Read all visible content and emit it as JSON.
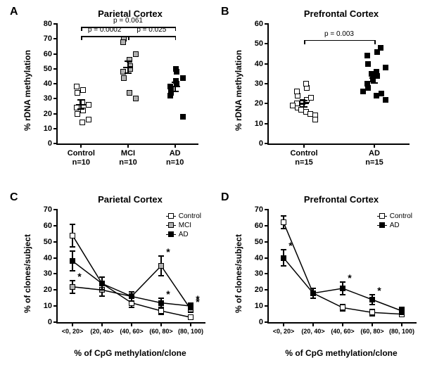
{
  "colors": {
    "bg": "#ffffff",
    "axis": "#000000",
    "open_fill": "#ffffff",
    "gray_fill": "#b0b0b0",
    "black_fill": "#000000",
    "line": "#000000"
  },
  "panelA": {
    "label": "A",
    "title": "Parietal Cortex",
    "type": "scatter",
    "ylabel": "% rDNA methylation",
    "ylim": [
      0,
      80
    ],
    "ytick_step": 10,
    "groups": [
      {
        "name": "Control",
        "n": 10,
        "marker": "open",
        "points": [
          20,
          24,
          22,
          28,
          16,
          34,
          38,
          36,
          14,
          26
        ],
        "mean": 26,
        "sem": 3
      },
      {
        "name": "MCI",
        "n": 10,
        "marker": "gray",
        "points": [
          44,
          48,
          52,
          56,
          60,
          70,
          68,
          50,
          34,
          30
        ],
        "mean": 51,
        "sem": 4
      },
      {
        "name": "AD",
        "n": 10,
        "marker": "black",
        "points": [
          36,
          38,
          40,
          42,
          44,
          34,
          32,
          48,
          50,
          18
        ],
        "mean": 38,
        "sem": 3
      }
    ],
    "brackets": [
      {
        "from": 0,
        "to": 1,
        "y": 72,
        "label": "p = 0.0002"
      },
      {
        "from": 1,
        "to": 2,
        "y": 72,
        "label": "p = 0.025"
      },
      {
        "from": 0,
        "to": 2,
        "y": 78,
        "label": "p = 0.061"
      }
    ]
  },
  "panelB": {
    "label": "B",
    "title": "Prefrontal Cortex",
    "type": "scatter",
    "ylabel": "% rDNA methylation",
    "ylim": [
      0,
      60
    ],
    "ytick_step": 10,
    "groups": [
      {
        "name": "Control",
        "n": 15,
        "marker": "open",
        "points": [
          18,
          20,
          22,
          16,
          14,
          24,
          26,
          28,
          30,
          12,
          19,
          21,
          17,
          23,
          15
        ],
        "mean": 20,
        "sem": 1.5
      },
      {
        "name": "AD",
        "n": 15,
        "marker": "black",
        "points": [
          28,
          30,
          34,
          36,
          38,
          40,
          44,
          46,
          24,
          22,
          26,
          32,
          35,
          25,
          48
        ],
        "mean": 33,
        "sem": 2.5
      }
    ],
    "brackets": [
      {
        "from": 0,
        "to": 1,
        "y": 52,
        "label": "p = 0.003"
      }
    ]
  },
  "panelC": {
    "label": "C",
    "title": "Parietal Cortex",
    "type": "line",
    "ylabel": "% of clones/subject",
    "xlabel": "% of CpG methylation/clone",
    "ylim": [
      0,
      70
    ],
    "ytick_step": 10,
    "xcats": [
      "<0, 20>",
      "(20, 40>",
      "(40, 60>",
      "(60, 80>",
      "(80, 100)"
    ],
    "legend_pos": "top-right",
    "series": [
      {
        "name": "Control",
        "marker": "open",
        "y": [
          54,
          24,
          12,
          7,
          3
        ],
        "err": [
          7,
          4,
          3,
          2,
          1
        ],
        "sig": [
          false,
          false,
          false,
          false,
          false
        ]
      },
      {
        "name": "MCI",
        "marker": "gray",
        "y": [
          22,
          20,
          16,
          35,
          8
        ],
        "err": [
          4,
          4,
          3,
          6,
          2
        ],
        "sig": [
          true,
          false,
          false,
          true,
          true
        ]
      },
      {
        "name": "AD",
        "marker": "black",
        "y": [
          38,
          24,
          16,
          12,
          10
        ],
        "err": [
          6,
          4,
          3,
          3,
          2
        ],
        "sig": [
          false,
          false,
          false,
          true,
          true
        ]
      }
    ]
  },
  "panelD": {
    "label": "D",
    "title": "Prefrontal Cortex",
    "type": "line",
    "ylabel": "% of clones/subject",
    "xlabel": "% of CpG methylation/clone",
    "ylim": [
      0,
      70
    ],
    "ytick_step": 10,
    "xcats": [
      "<0, 20>",
      "(20, 40>",
      "(40, 60>",
      "(60, 80>",
      "(80, 100)"
    ],
    "legend_pos": "top-right",
    "series": [
      {
        "name": "Control",
        "marker": "open",
        "y": [
          62,
          18,
          9,
          6,
          5
        ],
        "err": [
          4,
          3,
          2,
          2,
          1
        ],
        "sig": [
          false,
          false,
          false,
          false,
          false
        ]
      },
      {
        "name": "AD",
        "marker": "black",
        "y": [
          40,
          18,
          21,
          14,
          7
        ],
        "err": [
          5,
          3,
          4,
          3,
          2
        ],
        "sig": [
          true,
          false,
          true,
          true,
          false
        ]
      }
    ]
  }
}
